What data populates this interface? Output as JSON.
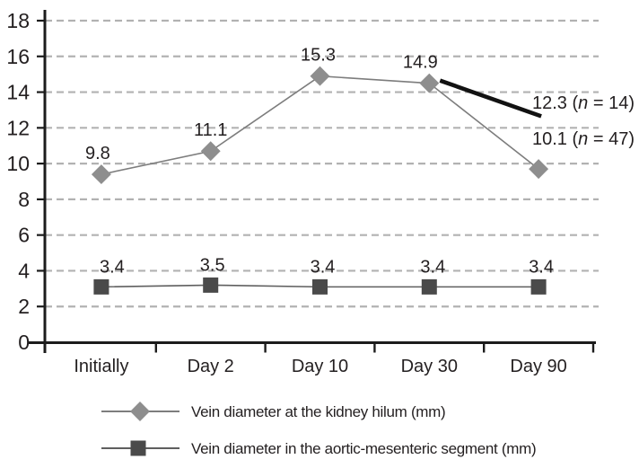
{
  "colors": {
    "text": "#231f20",
    "axis": "#1c1c1c",
    "grid": "#b2b2b2",
    "series1_marker": "#8e8e8e",
    "series1_line": "#7d7d7d",
    "series2_marker": "#4a4a4a",
    "series2_line": "#5f5f5f",
    "trend_line": "#121212",
    "background": "#ffffff"
  },
  "chart_data": {
    "type": "line",
    "title": "",
    "xlabel": "",
    "ylabel": "",
    "categories": [
      "Initially",
      "Day 2",
      "Day 10",
      "Day 30",
      "Day 90"
    ],
    "series": [
      {
        "name": "Vein diameter at the kidney hilum (mm)",
        "marker": "diamond",
        "color": "#8e8e8e",
        "line_color": "#7d7d7d",
        "values": [
          9.8,
          11.1,
          15.3,
          14.9,
          10.1
        ],
        "point_labels": [
          "9.8",
          "11.1",
          "15.3",
          "14.9",
          ""
        ]
      },
      {
        "name": "Vein diameter in the aortic-mesenteric segment (mm)",
        "marker": "square",
        "color": "#4a4a4a",
        "line_color": "#5f5f5f",
        "values": [
          3.4,
          3.5,
          3.4,
          3.4,
          3.4
        ],
        "point_labels": [
          "3.4",
          "3.5",
          "3.4",
          "3.4",
          "3.4"
        ]
      }
    ],
    "ylim": [
      0,
      18
    ],
    "ytick_step": 2,
    "yticks": [
      0,
      2,
      4,
      6,
      8,
      10,
      12,
      14,
      16,
      18
    ],
    "grid": "horizontal-dashed",
    "legend_position": "bottom-left",
    "annotations": [
      {
        "type": "trend-line",
        "from_category": "Day 30",
        "from_value": 14.9,
        "to_category": "Day 90",
        "to_value": 12.3,
        "n": 14,
        "label_prefix": "12.3 (",
        "label_italic": "n",
        "label_suffix": " = 14)",
        "color": "#121212"
      },
      {
        "type": "point-label",
        "category": "Day 90",
        "value": 10.1,
        "n": 47,
        "label_prefix": "10.1 (",
        "label_italic": "n",
        "label_suffix": " = 47)"
      }
    ]
  }
}
